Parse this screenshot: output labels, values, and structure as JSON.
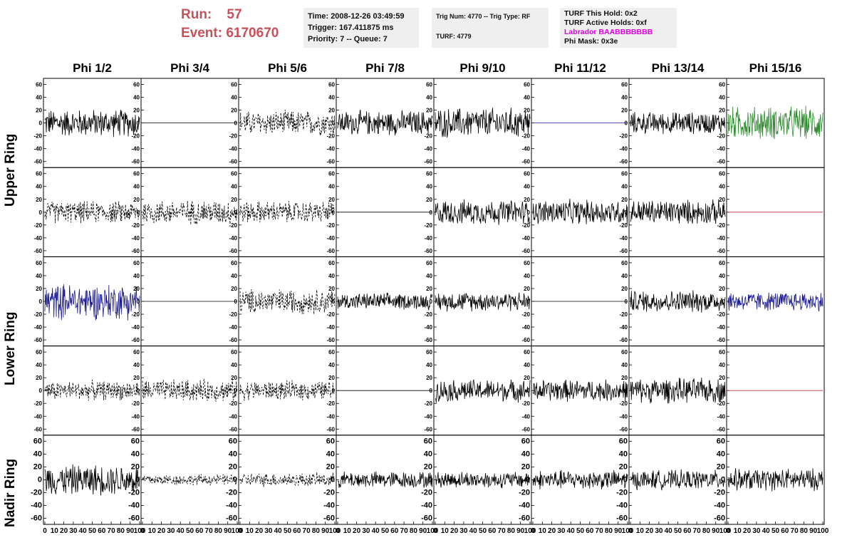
{
  "header": {
    "run_label": "Run:",
    "run_value": "57",
    "event_label": "Event:",
    "event_value": "6170670",
    "time_info": [
      "Time: 2008-12-26 03:49:59",
      "Trigger: 167.411875 ms",
      "Priority: 7 -- Queue: 7"
    ],
    "trig_info": [
      "Trig Num: 4770 -- Trig Type: RF",
      "",
      "TURF: 4779"
    ],
    "turf_info": [
      "TURF This Hold: 0x2",
      "TURF Active Holds: 0xf",
      "Labrador BAABBBBBBB",
      "Phi Mask: 0x3e"
    ]
  },
  "colors": {
    "title_red": "#c8505a",
    "labrador_pink": "#e000e0",
    "panel_bg": "#efefef"
  },
  "chart_data": {
    "type": "line",
    "columns": [
      "Phi 1/2",
      "Phi 3/4",
      "Phi 5/6",
      "Phi 7/8",
      "Phi 9/10",
      "Phi 11/12",
      "Phi 13/14",
      "Phi 15/16"
    ],
    "rows": [
      "Upper Ring",
      "Lower Ring",
      "Nadir Ring"
    ],
    "ylim": [
      -65,
      65
    ],
    "xlim": [
      0,
      100
    ],
    "y_ticks": [
      "60",
      "40",
      "20",
      "0",
      "-20",
      "-40",
      "-60"
    ],
    "x_ticks": [
      "0",
      "10",
      "20",
      "30",
      "40",
      "50",
      "60",
      "70",
      "80",
      "90",
      "100"
    ],
    "panels": [
      [
        {
          "style": "solid",
          "color": "#000000",
          "amp": 20
        },
        {
          "style": "flat",
          "color": "#000000",
          "amp": 0
        },
        {
          "style": "dashed",
          "color": "#000000",
          "amp": 18
        },
        {
          "style": "solid",
          "color": "#000000",
          "amp": 18
        },
        {
          "style": "solid",
          "color": "#000000",
          "amp": 22
        },
        {
          "style": "flat",
          "color": "#1a1a8c",
          "amp": 0
        },
        {
          "style": "solid",
          "color": "#000000",
          "amp": 16
        },
        {
          "style": "solid",
          "color": "#2e8b2e",
          "amp": 24
        }
      ],
      [
        {
          "style": "dashed",
          "color": "#000000",
          "amp": 16
        },
        {
          "style": "dashed",
          "color": "#000000",
          "amp": 18
        },
        {
          "style": "dashed",
          "color": "#000000",
          "amp": 16
        },
        {
          "style": "flat",
          "color": "#000000",
          "amp": 0
        },
        {
          "style": "solid",
          "color": "#000000",
          "amp": 18
        },
        {
          "style": "solid",
          "color": "#000000",
          "amp": 18
        },
        {
          "style": "solid",
          "color": "#000000",
          "amp": 18
        },
        {
          "style": "flat",
          "color": "#b03030",
          "amp": 0
        }
      ],
      [
        {
          "style": "solid",
          "color": "#1a1a8c",
          "amp": 26
        },
        {
          "style": "flat",
          "color": "#000000",
          "amp": 0
        },
        {
          "style": "dashed",
          "color": "#000000",
          "amp": 18
        },
        {
          "style": "solid",
          "color": "#000000",
          "amp": 12
        },
        {
          "style": "solid",
          "color": "#000000",
          "amp": 14
        },
        {
          "style": "flat",
          "color": "#000000",
          "amp": 0
        },
        {
          "style": "solid",
          "color": "#000000",
          "amp": 16
        },
        {
          "style": "solid",
          "color": "#1a1a8c",
          "amp": 14
        }
      ],
      [
        {
          "style": "dashed",
          "color": "#000000",
          "amp": 14
        },
        {
          "style": "dashed",
          "color": "#000000",
          "amp": 16
        },
        {
          "style": "dashed",
          "color": "#000000",
          "amp": 14
        },
        {
          "style": "flat",
          "color": "#000000",
          "amp": 0
        },
        {
          "style": "solid",
          "color": "#000000",
          "amp": 16
        },
        {
          "style": "solid",
          "color": "#000000",
          "amp": 16
        },
        {
          "style": "solid",
          "color": "#000000",
          "amp": 18
        },
        {
          "style": "flat",
          "color": "#b03030",
          "amp": 0
        }
      ],
      [
        {
          "style": "solid",
          "color": "#000000",
          "amp": 22
        },
        {
          "style": "dashed",
          "color": "#000000",
          "amp": 8
        },
        {
          "style": "dashed",
          "color": "#000000",
          "amp": 10
        },
        {
          "style": "solid",
          "color": "#000000",
          "amp": 12
        },
        {
          "style": "solid",
          "color": "#000000",
          "amp": 12
        },
        {
          "style": "solid",
          "color": "#000000",
          "amp": 14
        },
        {
          "style": "solid",
          "color": "#000000",
          "amp": 14
        },
        {
          "style": "solid",
          "color": "#000000",
          "amp": 16
        }
      ]
    ]
  }
}
